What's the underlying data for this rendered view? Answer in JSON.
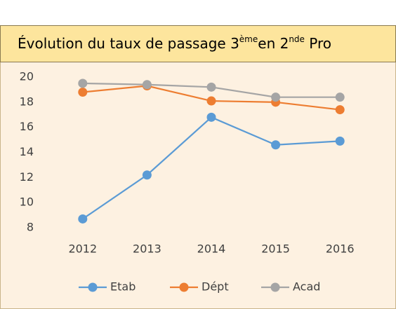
{
  "chart_data": {
    "type": "line",
    "title": [
      "Évolution du taux de passage 3",
      "ème",
      "en 2",
      "nde",
      " Pro"
    ],
    "categories": [
      "2012",
      "2013",
      "2014",
      "2015",
      "2016"
    ],
    "series": [
      {
        "name": "Etab",
        "color": "#5b9bd5",
        "values": [
          8.7,
          12.2,
          16.8,
          14.6,
          14.9
        ]
      },
      {
        "name": "Dépt",
        "color": "#ed7d31",
        "values": [
          18.8,
          19.3,
          18.1,
          18.0,
          17.4
        ]
      },
      {
        "name": "Acad",
        "color": "#a5a5a5",
        "values": [
          19.5,
          19.4,
          19.2,
          18.4,
          18.4
        ]
      }
    ],
    "ylim": [
      8,
      20
    ],
    "yticks": [
      8,
      10,
      12,
      14,
      16,
      18,
      20
    ],
    "grid": false,
    "legend": "bottom"
  }
}
